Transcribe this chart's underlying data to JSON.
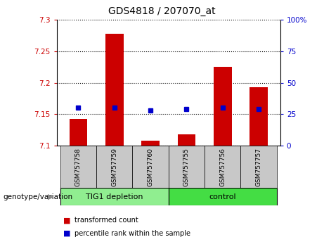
{
  "title": "GDS4818 / 207070_at",
  "samples": [
    "GSM757758",
    "GSM757759",
    "GSM757760",
    "GSM757755",
    "GSM757756",
    "GSM757757"
  ],
  "transformed_counts": [
    7.143,
    7.278,
    7.108,
    7.118,
    7.225,
    7.193
  ],
  "percentile_ranks": [
    30,
    30,
    28,
    29,
    30,
    29
  ],
  "ylim_left": [
    7.1,
    7.3
  ],
  "ylim_right": [
    0,
    100
  ],
  "yticks_left": [
    7.1,
    7.15,
    7.2,
    7.25,
    7.3
  ],
  "yticks_right": [
    0,
    25,
    50,
    75,
    100
  ],
  "bar_color": "#cc0000",
  "marker_color": "#0000cc",
  "bar_width": 0.5,
  "groups": [
    {
      "label": "TIG1 depletion",
      "indices": [
        0,
        1,
        2
      ],
      "color": "#90ee90"
    },
    {
      "label": "control",
      "indices": [
        3,
        4,
        5
      ],
      "color": "#90ee90"
    }
  ],
  "group_label_prefix": "genotype/variation",
  "legend_items": [
    {
      "label": "transformed count",
      "color": "#cc0000"
    },
    {
      "label": "percentile rank within the sample",
      "color": "#0000cc"
    }
  ],
  "axis_label_color_left": "#cc0000",
  "axis_label_color_right": "#0000cc",
  "background_color": "#ffffff",
  "plot_bg_color": "#ffffff",
  "tick_label_bg": "#c8c8c8",
  "group_bg_light": "#90ee90",
  "group_bg_dark": "#44dd44"
}
